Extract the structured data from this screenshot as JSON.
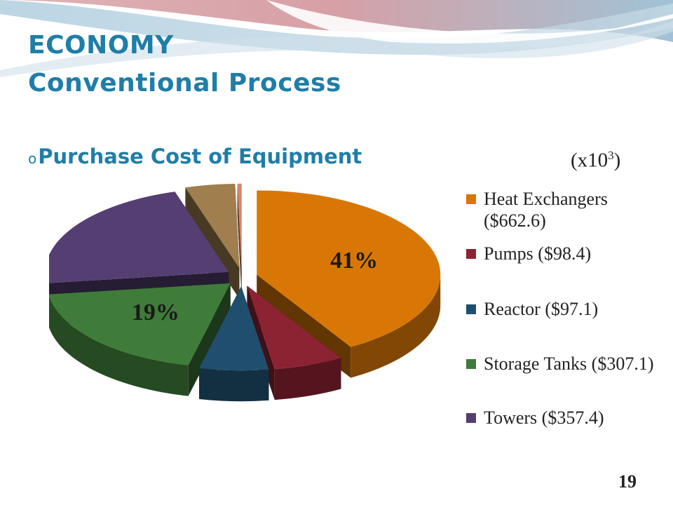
{
  "slide": {
    "title_line1": "ECONOMY",
    "title_line2": "Conventional Process",
    "bullet_symbol": "o",
    "bullet_text": "Purchase Cost of Equipment",
    "units_text": "(x10",
    "units_exp": "3",
    "units_close": ")",
    "page_number": "19"
  },
  "colors": {
    "title": "#1f7ea8",
    "heat_exchangers": "#d97706",
    "pumps": "#8c2332",
    "reactor": "#1f4e6e",
    "storage_tanks": "#3f7b39",
    "towers": "#553e72",
    "other1": "#a07e4e",
    "other2": "#d8856a"
  },
  "chart_data": {
    "type": "pie",
    "title": "",
    "exploded": true,
    "style": "3d",
    "legend_position": "right",
    "slices": [
      {
        "name": "Heat Exchangers ($662.6)",
        "value": 662.6,
        "color": "#d97706",
        "label": "41%"
      },
      {
        "name": "Pumps ($98.4)",
        "value": 98.4,
        "color": "#8c2332",
        "label": ""
      },
      {
        "name": "Reactor ($97.1)",
        "value": 97.1,
        "color": "#1f4e6e",
        "label": ""
      },
      {
        "name": "Storage Tanks ($307.1)",
        "value": 307.1,
        "color": "#3f7b39",
        "label": "19%"
      },
      {
        "name": "Towers ($357.4)",
        "value": 357.4,
        "color": "#553e72",
        "label": ""
      },
      {
        "name": "",
        "value": 70,
        "color": "#a07e4e",
        "label": ""
      },
      {
        "name": "",
        "value": 6,
        "color": "#d8856a",
        "label": ""
      }
    ],
    "legend": [
      "Heat Exchangers ($662.6)",
      "Pumps ($98.4)",
      "Reactor ($97.1)",
      "Storage Tanks ($307.1)",
      "Towers ($357.4)"
    ]
  }
}
